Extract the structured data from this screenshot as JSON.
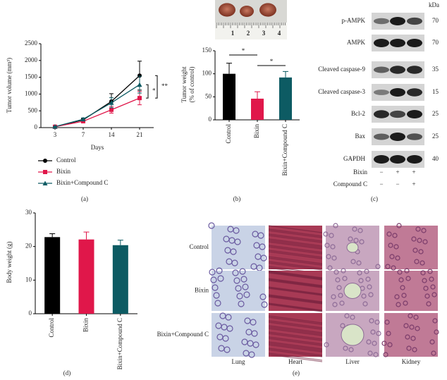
{
  "chart_data": [
    {
      "type": "line",
      "panel": "(a)",
      "ylabel": "Tumor volume (mm³)",
      "xlabel": "Days",
      "categories": [
        "3",
        "7",
        "14",
        "21"
      ],
      "series": [
        {
          "name": "Control",
          "color": "#000000",
          "marker": "circle",
          "values": [
            30,
            230,
            780,
            1550
          ],
          "errors": [
            10,
            40,
            230,
            430
          ]
        },
        {
          "name": "Bixin",
          "color": "#e0174a",
          "marker": "square",
          "values": [
            25,
            190,
            530,
            880
          ],
          "errors": [
            8,
            30,
            100,
            200
          ]
        },
        {
          "name": "Bixin+Compound C",
          "color": "#0d5b63",
          "marker": "triangle",
          "values": [
            28,
            250,
            740,
            1280
          ],
          "errors": [
            8,
            40,
            150,
            250
          ]
        }
      ],
      "ylim": [
        0,
        2500
      ],
      "yticks": [
        0,
        500,
        1000,
        1500,
        2000,
        2500
      ],
      "annotations": [
        "*",
        "**"
      ]
    },
    {
      "type": "bar",
      "panel": "(b)",
      "ylabel": [
        "Tumor weight",
        "(% of control)"
      ],
      "categories": [
        "Control",
        "Bixin",
        "Bixin+Compound C"
      ],
      "values": [
        100,
        46,
        92
      ],
      "errors": [
        23,
        15,
        13
      ],
      "colors": [
        "#000000",
        "#e0174a",
        "#0d5b63"
      ],
      "ylim": [
        0,
        150
      ],
      "yticks": [
        0,
        50,
        100,
        150
      ],
      "annotations": [
        "*",
        "*"
      ],
      "photo_labels": [
        "1",
        "2",
        "3",
        "4"
      ]
    },
    {
      "type": "bar",
      "panel": "(d)",
      "ylabel": [
        "Body weight (g)"
      ],
      "categories": [
        "Control",
        "Bixin",
        "Bixin+Compound C"
      ],
      "values": [
        22.8,
        22.1,
        20.4
      ],
      "errors": [
        1,
        2.2,
        1.5
      ],
      "colors": [
        "#000000",
        "#e0174a",
        "#0d5b63"
      ],
      "ylim": [
        0,
        30
      ],
      "yticks": [
        0,
        10,
        20,
        30
      ],
      "annotations": []
    }
  ],
  "blot": {
    "panel": "(c)",
    "unit": "kDa",
    "rows": [
      {
        "label": "p-AMPK",
        "kda": "70"
      },
      {
        "label": "AMPK",
        "kda": "70"
      },
      {
        "label": "Cleaved caspase-9",
        "kda": "35"
      },
      {
        "label": "Cleaved caspase-3",
        "kda": "15"
      },
      {
        "label": "Bcl-2",
        "kda": "25"
      },
      {
        "label": "Bax",
        "kda": "25"
      },
      {
        "label": "GAPDH",
        "kda": "40"
      }
    ],
    "treatments": [
      {
        "label": "Bixin",
        "lanes": [
          "−",
          "+",
          "+"
        ]
      },
      {
        "label": "Compound C",
        "lanes": [
          "−",
          "−",
          "+"
        ]
      }
    ]
  },
  "histology": {
    "panel": "(e)",
    "rows": [
      "Control",
      "Bixin",
      "Bixin+Compound C"
    ],
    "columns": [
      "Lung",
      "Heart",
      "Liver",
      "Kidney"
    ]
  }
}
